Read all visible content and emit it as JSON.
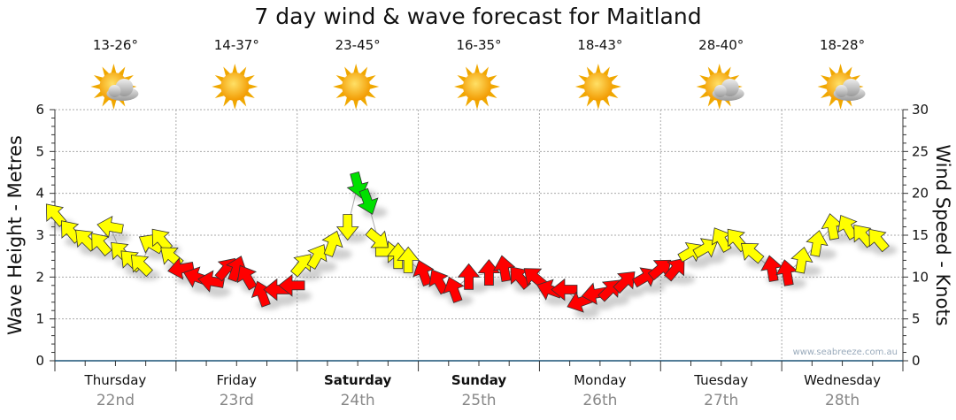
{
  "title": "7 day wind & wave forecast for Maitland",
  "days": [
    {
      "name": "Thursday",
      "date": "22nd",
      "temp": "13-26°",
      "icon": "partly-cloudy",
      "bold": false
    },
    {
      "name": "Friday",
      "date": "23rd",
      "temp": "14-37°",
      "icon": "sunny",
      "bold": false
    },
    {
      "name": "Saturday",
      "date": "24th",
      "temp": "23-45°",
      "icon": "sunny",
      "bold": true
    },
    {
      "name": "Sunday",
      "date": "25th",
      "temp": "16-35°",
      "icon": "sunny",
      "bold": true
    },
    {
      "name": "Monday",
      "date": "26th",
      "temp": "18-43°",
      "icon": "sunny",
      "bold": false
    },
    {
      "name": "Tuesday",
      "date": "27th",
      "temp": "28-40°",
      "icon": "partly-cloudy",
      "bold": false
    },
    {
      "name": "Wednesday",
      "date": "28th",
      "temp": "18-28°",
      "icon": "partly-cloudy",
      "bold": false
    }
  ],
  "watermark": "www.seabreeze.com.au",
  "colors": {
    "light": "#ffff00",
    "moderate": "#ff0000",
    "strong": "#00e000",
    "axis": "#1a5276"
  },
  "chart_data": {
    "type": "scatter",
    "title": "7 day wind & wave forecast for Maitland",
    "ylabel": "Wave Height - Metres",
    "y2label": "Wind Speed - Knots",
    "ylim": [
      0,
      6
    ],
    "y2lim": [
      0,
      30
    ],
    "yticks": [
      "0",
      "1",
      "2",
      "3",
      "4",
      "5",
      "6"
    ],
    "y2ticks": [
      "0",
      "5",
      "10",
      "15",
      "20",
      "25",
      "30"
    ],
    "xlim_hours": [
      0,
      168
    ],
    "points": [
      {
        "h": 0,
        "wave": 3.5,
        "dir": -40,
        "c": "light"
      },
      {
        "h": 3,
        "wave": 3.1,
        "dir": -40,
        "c": "light"
      },
      {
        "h": 6,
        "wave": 2.9,
        "dir": -45,
        "c": "light"
      },
      {
        "h": 9,
        "wave": 2.8,
        "dir": -40,
        "c": "light"
      },
      {
        "h": 11,
        "wave": 3.2,
        "dir": -80,
        "c": "light"
      },
      {
        "h": 13,
        "wave": 2.6,
        "dir": -45,
        "c": "light"
      },
      {
        "h": 15,
        "wave": 2.4,
        "dir": -45,
        "c": "light"
      },
      {
        "h": 17,
        "wave": 2.3,
        "dir": -45,
        "c": "light"
      },
      {
        "h": 19,
        "wave": 2.8,
        "dir": -60,
        "c": "light"
      },
      {
        "h": 21,
        "wave": 2.9,
        "dir": -40,
        "c": "light"
      },
      {
        "h": 23,
        "wave": 2.5,
        "dir": -50,
        "c": "light"
      },
      {
        "h": 25,
        "wave": 2.2,
        "dir": -100,
        "c": "moderate"
      },
      {
        "h": 28,
        "wave": 2.0,
        "dir": -70,
        "c": "moderate"
      },
      {
        "h": 31,
        "wave": 1.9,
        "dir": -80,
        "c": "moderate"
      },
      {
        "h": 34,
        "wave": 2.2,
        "dir": 40,
        "c": "moderate"
      },
      {
        "h": 36,
        "wave": 2.2,
        "dir": 20,
        "c": "moderate"
      },
      {
        "h": 38,
        "wave": 2.0,
        "dir": -30,
        "c": "moderate"
      },
      {
        "h": 41,
        "wave": 1.6,
        "dir": -20,
        "c": "moderate"
      },
      {
        "h": 44,
        "wave": 1.7,
        "dir": -90,
        "c": "moderate"
      },
      {
        "h": 47,
        "wave": 1.8,
        "dir": -90,
        "c": "moderate"
      },
      {
        "h": 49,
        "wave": 2.3,
        "dir": 40,
        "c": "light"
      },
      {
        "h": 52,
        "wave": 2.5,
        "dir": 30,
        "c": "light"
      },
      {
        "h": 55,
        "wave": 2.8,
        "dir": 20,
        "c": "light"
      },
      {
        "h": 58,
        "wave": 3.2,
        "dir": 180,
        "c": "light"
      },
      {
        "h": 60,
        "wave": 4.2,
        "dir": 165,
        "c": "strong"
      },
      {
        "h": 62,
        "wave": 3.8,
        "dir": 160,
        "c": "strong"
      },
      {
        "h": 64,
        "wave": 2.9,
        "dir": 130,
        "c": "light"
      },
      {
        "h": 66,
        "wave": 2.6,
        "dir": 90,
        "c": "light"
      },
      {
        "h": 68,
        "wave": 2.5,
        "dir": 0,
        "c": "light"
      },
      {
        "h": 70,
        "wave": 2.4,
        "dir": 0,
        "c": "light"
      },
      {
        "h": 73,
        "wave": 2.1,
        "dir": -20,
        "c": "moderate"
      },
      {
        "h": 76,
        "wave": 1.9,
        "dir": -30,
        "c": "moderate"
      },
      {
        "h": 79,
        "wave": 1.7,
        "dir": -20,
        "c": "moderate"
      },
      {
        "h": 82,
        "wave": 2.0,
        "dir": 0,
        "c": "moderate"
      },
      {
        "h": 86,
        "wave": 2.1,
        "dir": 0,
        "c": "moderate"
      },
      {
        "h": 89,
        "wave": 2.2,
        "dir": -10,
        "c": "moderate"
      },
      {
        "h": 92,
        "wave": 2.0,
        "dir": -40,
        "c": "moderate"
      },
      {
        "h": 95,
        "wave": 2.0,
        "dir": -50,
        "c": "moderate"
      },
      {
        "h": 98,
        "wave": 1.7,
        "dir": -70,
        "c": "moderate"
      },
      {
        "h": 101,
        "wave": 1.7,
        "dir": -90,
        "c": "moderate"
      },
      {
        "h": 104,
        "wave": 1.4,
        "dir": -110,
        "c": "moderate"
      },
      {
        "h": 107,
        "wave": 1.6,
        "dir": -100,
        "c": "moderate"
      },
      {
        "h": 110,
        "wave": 1.7,
        "dir": 45,
        "c": "moderate"
      },
      {
        "h": 113,
        "wave": 1.9,
        "dir": 45,
        "c": "moderate"
      },
      {
        "h": 117,
        "wave": 2.0,
        "dir": 60,
        "c": "moderate"
      },
      {
        "h": 120,
        "wave": 2.2,
        "dir": 50,
        "c": "moderate"
      },
      {
        "h": 123,
        "wave": 2.2,
        "dir": 40,
        "c": "moderate"
      },
      {
        "h": 126,
        "wave": 2.6,
        "dir": 60,
        "c": "light"
      },
      {
        "h": 129,
        "wave": 2.7,
        "dir": 60,
        "c": "light"
      },
      {
        "h": 132,
        "wave": 2.9,
        "dir": -30,
        "c": "light"
      },
      {
        "h": 135,
        "wave": 2.9,
        "dir": -40,
        "c": "light"
      },
      {
        "h": 138,
        "wave": 2.6,
        "dir": -50,
        "c": "light"
      },
      {
        "h": 142,
        "wave": 2.2,
        "dir": -10,
        "c": "moderate"
      },
      {
        "h": 145,
        "wave": 2.1,
        "dir": -10,
        "c": "moderate"
      },
      {
        "h": 148,
        "wave": 2.4,
        "dir": 10,
        "c": "light"
      },
      {
        "h": 151,
        "wave": 2.8,
        "dir": 10,
        "c": "light"
      },
      {
        "h": 154,
        "wave": 3.2,
        "dir": -10,
        "c": "light"
      },
      {
        "h": 157,
        "wave": 3.2,
        "dir": -30,
        "c": "light"
      },
      {
        "h": 160,
        "wave": 3.0,
        "dir": -40,
        "c": "light"
      },
      {
        "h": 163,
        "wave": 2.9,
        "dir": -40,
        "c": "light"
      }
    ]
  }
}
